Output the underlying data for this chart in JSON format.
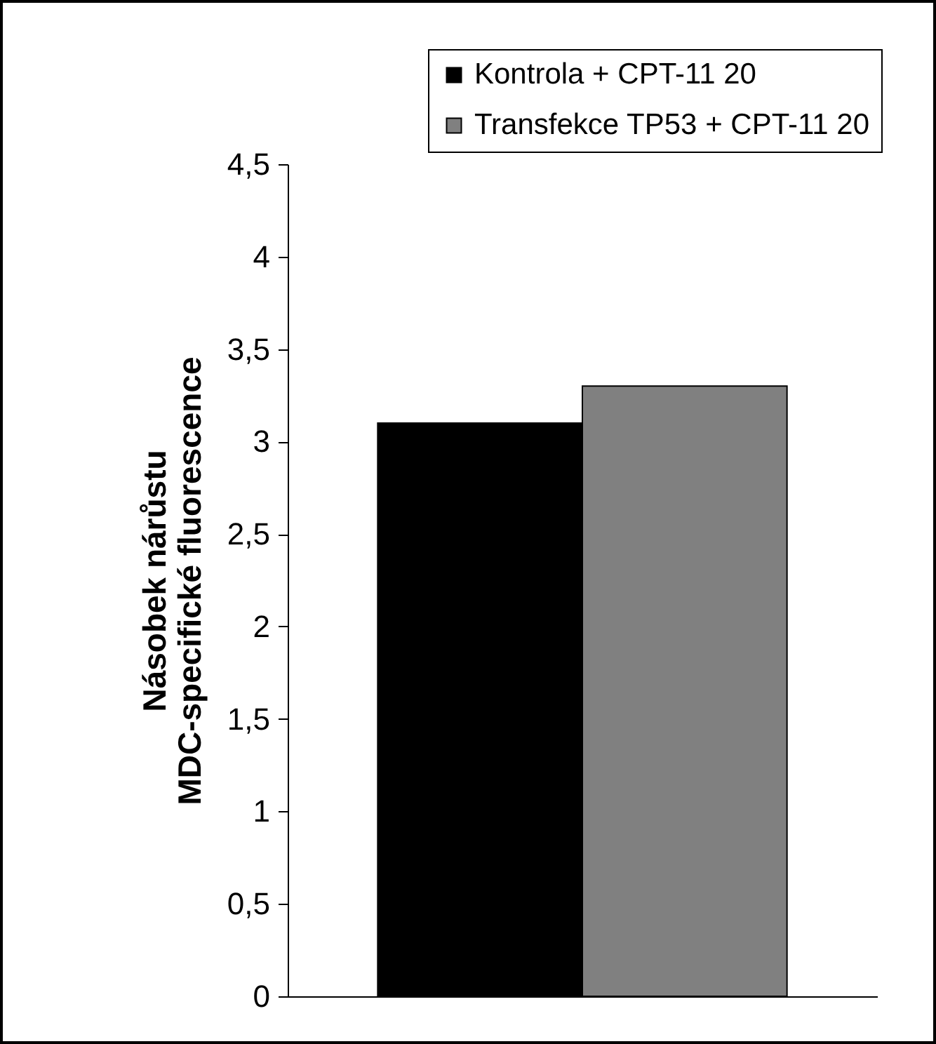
{
  "chart_data": {
    "type": "bar",
    "ylabel": "Násobek nárůstu\nMDC-specifické fluorescence",
    "categories": [
      null
    ],
    "series": [
      {
        "name": "Kontrola + CPT-11 20",
        "color": "#000000",
        "values": [
          3.1
        ]
      },
      {
        "name": "Transfekce TP53 + CPT-11 20",
        "color": "#808080",
        "values": [
          3.3
        ]
      }
    ],
    "ylim": [
      0,
      4.5
    ],
    "yticks": [
      0,
      {
        "value": 0.5,
        "label": "0,5"
      },
      1,
      {
        "value": 1.5,
        "label": "1,5"
      },
      2,
      {
        "value": 2.5,
        "label": "2,5"
      },
      3,
      {
        "value": 3.5,
        "label": "3,5"
      },
      4,
      {
        "value": 4.5,
        "label": "4,5"
      }
    ],
    "legend": "top right"
  }
}
